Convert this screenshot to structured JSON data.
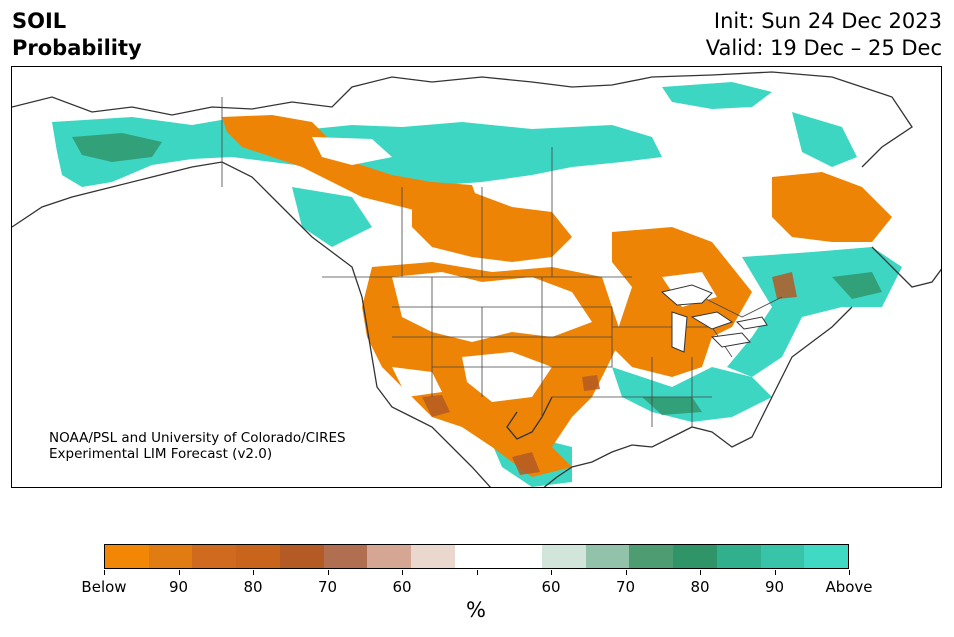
{
  "header": {
    "title_line1": "SOIL",
    "title_line2": "Probability",
    "init": "Init: Sun 24 Dec 2023",
    "valid": "Valid: 19 Dec – 25 Dec"
  },
  "credit": {
    "line1": "NOAA/PSL and University of Colorado/CIRES",
    "line2": "Experimental LIM Forecast (v2.0)"
  },
  "colorbar": {
    "unit": "%",
    "colors": [
      "#f28705",
      "#e07c12",
      "#cf6a1e",
      "#c8641c",
      "#b45a24",
      "#b06f50",
      "#d4a693",
      "#ead8cf",
      "#ffffff",
      "#ffffff",
      "#d1e5da",
      "#93c2aa",
      "#4e9c72",
      "#2f9468",
      "#31b08e",
      "#38c4a8",
      "#40d9c4"
    ],
    "labels": [
      "Below",
      "90",
      "80",
      "70",
      "60",
      "",
      "60",
      "70",
      "80",
      "90",
      "Above"
    ]
  }
}
